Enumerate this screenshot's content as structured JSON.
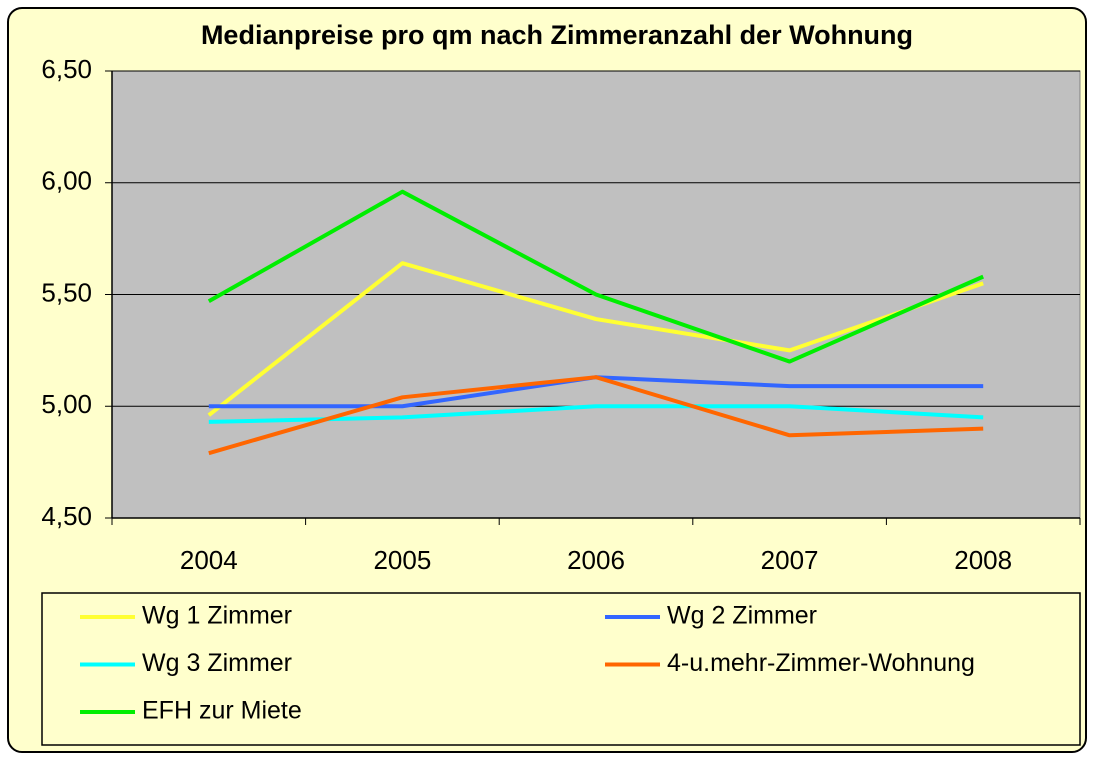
{
  "chart_data": {
    "type": "line",
    "title": "Medianpreise pro qm nach Zimmeranzahl der Wohnung",
    "categories": [
      "2004",
      "2005",
      "2006",
      "2007",
      "2008"
    ],
    "series": [
      {
        "name": "Wg 1 Zimmer",
        "color": "#ffff33",
        "values": [
          4.96,
          5.64,
          5.39,
          5.25,
          5.55
        ]
      },
      {
        "name": "Wg 2 Zimmer",
        "color": "#3366ff",
        "values": [
          5.0,
          5.0,
          5.13,
          5.09,
          5.09
        ]
      },
      {
        "name": "Wg 3 Zimmer",
        "color": "#00ffff",
        "values": [
          4.93,
          4.95,
          5.0,
          5.0,
          4.95
        ]
      },
      {
        "name": "4-u.mehr-Zimmer-Wohnung",
        "color": "#ff6600",
        "values": [
          4.79,
          5.04,
          5.13,
          4.87,
          4.9
        ]
      },
      {
        "name": "EFH zur Miete",
        "color": "#00ee00",
        "values": [
          5.47,
          5.96,
          5.5,
          5.2,
          5.58
        ]
      }
    ],
    "ylim": [
      4.5,
      6.5
    ],
    "yticks": [
      {
        "value": 4.5,
        "label": "4,50"
      },
      {
        "value": 5.0,
        "label": "5,00"
      },
      {
        "value": 5.5,
        "label": "5,50"
      },
      {
        "value": 6.0,
        "label": "6,00"
      },
      {
        "value": 6.5,
        "label": "6,50"
      }
    ],
    "grid": true
  }
}
